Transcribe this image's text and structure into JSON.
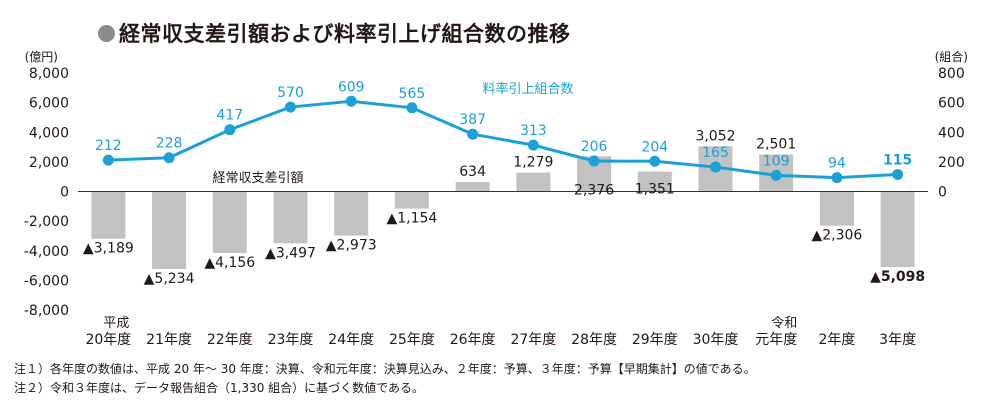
{
  "title": "経常収支差引額および料率引上げ組合数の推移",
  "notes": [
    "注１）各年度の数値は、平成 20 年～ 30 年度：決算、令和元年度：決算見込み、２年度：予算、３年度：予算【早期集計】の値である。",
    "注２）令和３年度は、データ報告組合（1,330 組合）に基づく数値である。"
  ],
  "colors": {
    "bar": "#c2c2c2",
    "line": "#1ba1d5",
    "label_line": "#1ba1d5",
    "text": "#231815",
    "axis": "#333333"
  },
  "chart_data": {
    "type": "bar",
    "categories": [
      [
        "平成",
        "20年度"
      ],
      [
        "21年度"
      ],
      [
        "22年度"
      ],
      [
        "23年度"
      ],
      [
        "24年度"
      ],
      [
        "25年度"
      ],
      [
        "26年度"
      ],
      [
        "27年度"
      ],
      [
        "28年度"
      ],
      [
        "29年度"
      ],
      [
        "30年度"
      ],
      [
        "令和",
        "元年度"
      ],
      [
        "2年度"
      ],
      [
        "3年度"
      ]
    ],
    "left_axis": {
      "label": "(億円)",
      "ylim": [
        -8000,
        8000
      ],
      "ticks": [
        8000,
        6000,
        4000,
        2000,
        0,
        -2000,
        -4000,
        -6000,
        -8000
      ],
      "tick_labels": [
        "8,000",
        "6,000",
        "4,000",
        "2,000",
        "0",
        "-2,000",
        "-4,000",
        "-6,000",
        "-8,000"
      ]
    },
    "right_axis": {
      "label": "(組合)",
      "ylim": [
        0,
        800
      ],
      "ticks": [
        800,
        600,
        400,
        200,
        0
      ],
      "tick_labels": [
        "800",
        "600",
        "400",
        "200",
        "0"
      ]
    },
    "series": [
      {
        "name": "経常収支差引額",
        "type": "bar",
        "axis": "left",
        "values": [
          -3189,
          -5234,
          -4156,
          -3497,
          -2973,
          -1154,
          634,
          1279,
          2376,
          1351,
          3052,
          2501,
          -2306,
          -5098
        ],
        "labels": [
          "▲3,189",
          "▲5,234",
          "▲4,156",
          "▲3,497",
          "▲2,973",
          "▲1,154",
          "634",
          "1,279",
          "2,376",
          "1,351",
          "3,052",
          "2,501",
          "▲2,306",
          "▲5,098"
        ]
      },
      {
        "name": "料率引上組合数",
        "type": "line",
        "axis": "right",
        "values": [
          212,
          228,
          417,
          570,
          609,
          565,
          387,
          313,
          206,
          204,
          165,
          109,
          94,
          115
        ],
        "labels": [
          "212",
          "228",
          "417",
          "570",
          "609",
          "565",
          "387",
          "313",
          "206",
          "204",
          "165",
          "109",
          "94",
          "115"
        ]
      }
    ]
  }
}
